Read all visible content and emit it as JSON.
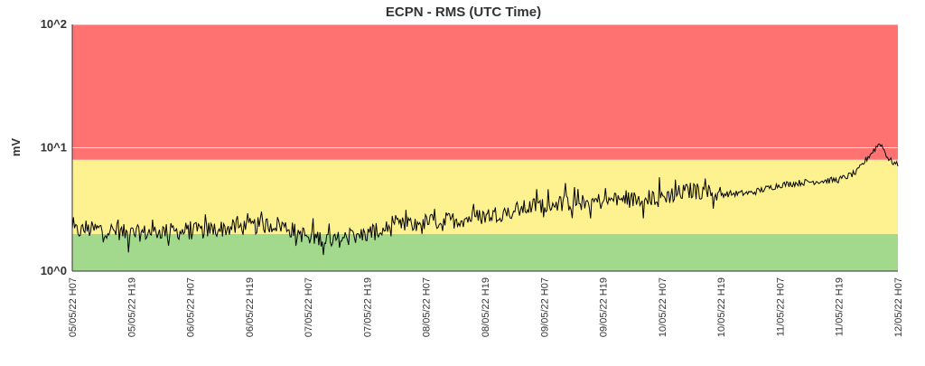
{
  "chart_data": {
    "type": "line",
    "title": "ECPN - RMS (UTC Time)",
    "xlabel": "",
    "ylabel": "mV",
    "y_scale": "log",
    "ylim": [
      1,
      100
    ],
    "y_ticks": [
      "10^0",
      "10^1",
      "10^2"
    ],
    "x_ticks": [
      "05/05/22 H07",
      "05/05/22 H19",
      "06/05/22 H07",
      "06/05/22 H19",
      "07/05/22 H07",
      "07/05/22 H19",
      "08/05/22 H07",
      "08/05/22 H19",
      "09/05/22 H07",
      "09/05/22 H19",
      "10/05/22 H07",
      "10/05/22 H19",
      "11/05/22 H07",
      "11/05/22 H19",
      "12/05/22 H07"
    ],
    "bands": [
      {
        "name": "green",
        "from": 1,
        "to": 2,
        "color": "#a3d98c"
      },
      {
        "name": "yellow",
        "from": 2,
        "to": 8,
        "color": "#fdf28f"
      },
      {
        "name": "red",
        "from": 8,
        "to": 100,
        "color": "#ff7272"
      }
    ],
    "grid": true,
    "line_color": "#000000",
    "series": [
      {
        "x": [
          0,
          0.5,
          1,
          1.5,
          2,
          2.5,
          3,
          3.5,
          4,
          4.5,
          5,
          5.5,
          6,
          6.5,
          7,
          7.5,
          8,
          8.5,
          9,
          9.5,
          10,
          10.5,
          11,
          11.5,
          12,
          12.5,
          13,
          13.3,
          13.5,
          13.7,
          13.85,
          14
        ],
        "values": [
          2.1,
          2.2,
          2.0,
          2.1,
          2.1,
          2.2,
          2.3,
          2.4,
          1.9,
          1.8,
          2.0,
          2.3,
          2.5,
          2.6,
          2.8,
          3.1,
          3.5,
          3.6,
          3.7,
          3.8,
          4.0,
          4.5,
          4.2,
          4.3,
          5.0,
          5.3,
          5.5,
          6.3,
          8.5,
          11.0,
          8.0,
          7.2
        ]
      }
    ]
  }
}
